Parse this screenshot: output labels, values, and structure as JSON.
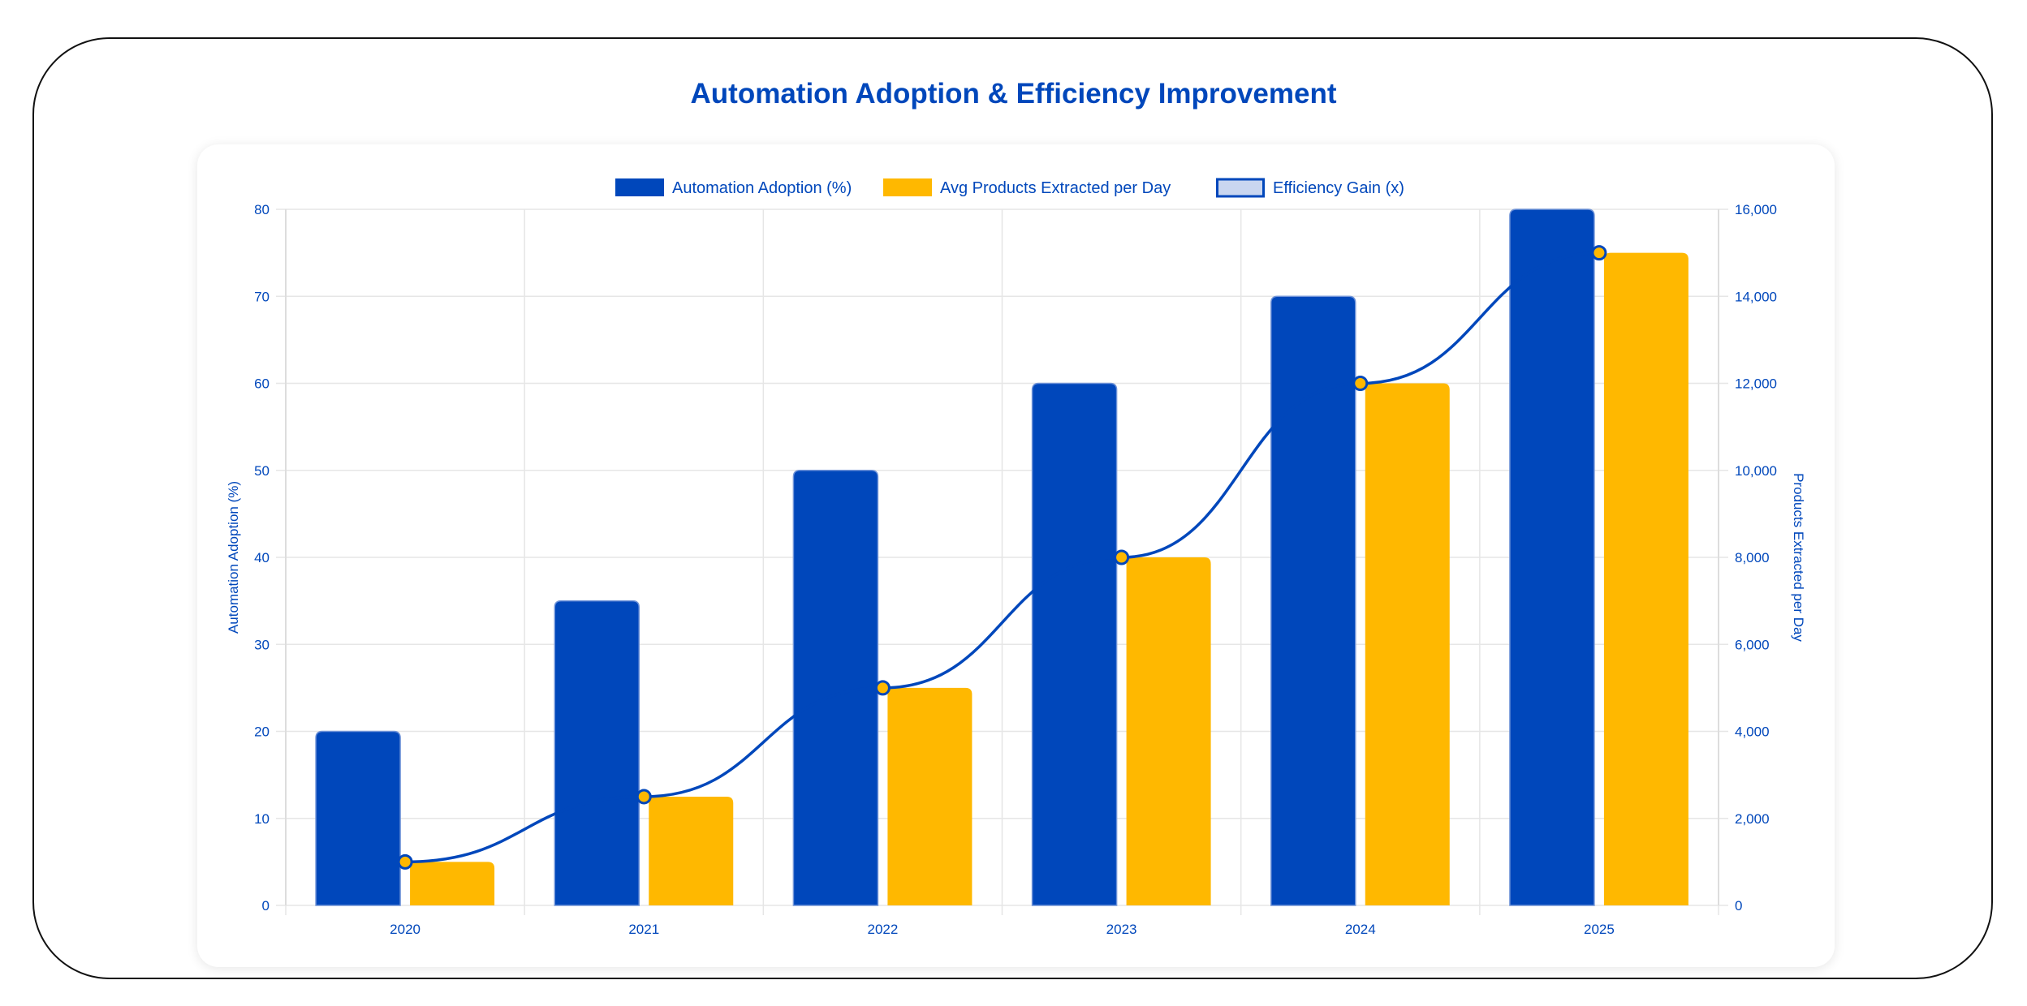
{
  "title": "Automation Adoption & Efficiency Improvement",
  "chart_data": {
    "type": "bar",
    "title": "Automation Adoption & Efficiency Improvement",
    "categories": [
      "2020",
      "2021",
      "2022",
      "2023",
      "2024",
      "2025"
    ],
    "series": [
      {
        "name": "Automation Adoption (%)",
        "type": "bar",
        "axis": "left",
        "color": "#0047BB",
        "values": [
          20,
          35,
          50,
          60,
          70,
          80
        ]
      },
      {
        "name": "Avg Products Extracted per Day",
        "type": "bar",
        "axis": "right",
        "color": "#FFB800",
        "values": [
          1000,
          2500,
          5000,
          8000,
          12000,
          15000
        ]
      },
      {
        "name": "Efficiency Gain (x)",
        "type": "line",
        "axis": "hidden",
        "color": "#0047BB",
        "marker_color": "#FFB800",
        "values": [
          1,
          2.5,
          5,
          8,
          12,
          15
        ]
      }
    ],
    "y_left": {
      "label": "Automation Adoption (%)",
      "ylim": [
        0,
        80
      ],
      "ticks": [
        "0",
        "10",
        "20",
        "30",
        "40",
        "50",
        "60",
        "70",
        "80"
      ]
    },
    "y_right": {
      "label": "Products Extracted per Day",
      "ylim": [
        0,
        16000
      ],
      "ticks": [
        "0",
        "2,000",
        "4,000",
        "6,000",
        "8,000",
        "10,000",
        "12,000",
        "14,000",
        "16,000"
      ]
    },
    "y_hidden_lim": [
      0,
      16
    ],
    "legend_placement": "top",
    "grid": true
  }
}
